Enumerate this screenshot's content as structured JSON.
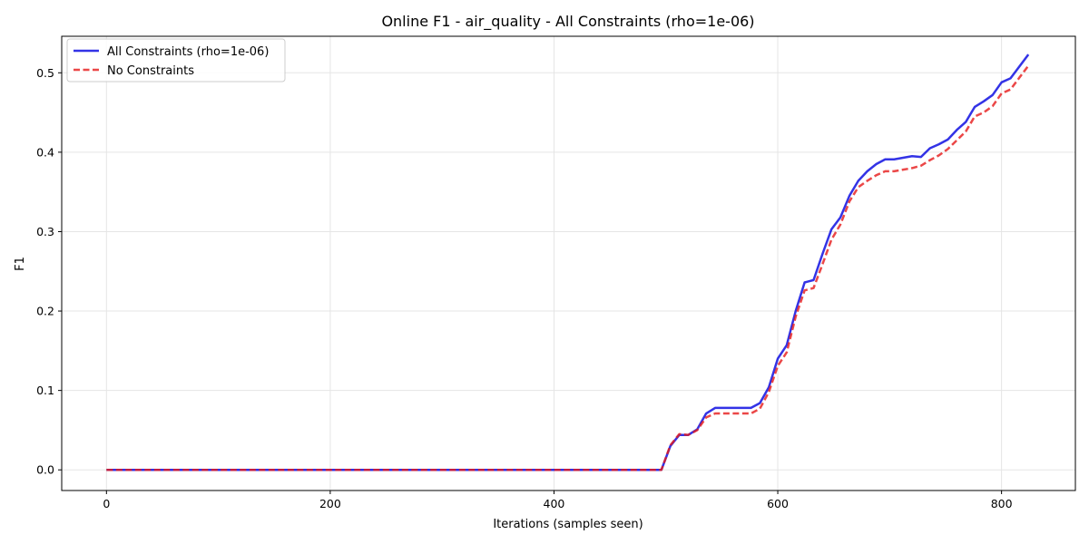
{
  "chart_data": {
    "type": "line",
    "title": "Online F1 - air_quality - All Constraints (rho=1e-06)",
    "xlabel": "Iterations (samples seen)",
    "ylabel": "F1",
    "xlim": [
      -40,
      866
    ],
    "ylim": [
      -0.026,
      0.546
    ],
    "xticks": [
      0,
      200,
      400,
      600,
      800
    ],
    "xtick_labels": [
      "0",
      "200",
      "400",
      "600",
      "800"
    ],
    "yticks": [
      0.0,
      0.1,
      0.2,
      0.3,
      0.4,
      0.5
    ],
    "ytick_labels": [
      "0.0",
      "0.1",
      "0.2",
      "0.3",
      "0.4",
      "0.5"
    ],
    "grid": true,
    "legend_position": "upper-left",
    "series": [
      {
        "name": "All Constraints (rho=1e-06)",
        "color": "#0000e0",
        "style": "solid",
        "x": [
          0,
          50,
          100,
          150,
          200,
          250,
          300,
          350,
          400,
          450,
          496,
          504,
          512,
          520,
          528,
          536,
          544,
          552,
          560,
          568,
          576,
          584,
          592,
          600,
          608,
          616,
          624,
          632,
          640,
          648,
          656,
          664,
          672,
          680,
          688,
          696,
          704,
          712,
          720,
          728,
          736,
          744,
          752,
          760,
          768,
          776,
          784,
          792,
          800,
          808,
          816,
          824
        ],
        "y": [
          0.0,
          0.0,
          0.0,
          0.0,
          0.0,
          0.0,
          0.0,
          0.0,
          0.0,
          0.0,
          0.0,
          0.03,
          0.044,
          0.044,
          0.051,
          0.071,
          0.078,
          0.078,
          0.078,
          0.078,
          0.078,
          0.084,
          0.104,
          0.14,
          0.157,
          0.2,
          0.236,
          0.239,
          0.272,
          0.303,
          0.318,
          0.345,
          0.364,
          0.376,
          0.385,
          0.391,
          0.391,
          0.393,
          0.395,
          0.394,
          0.405,
          0.41,
          0.416,
          0.428,
          0.438,
          0.457,
          0.464,
          0.472,
          0.488,
          0.493,
          0.508,
          0.523
        ]
      },
      {
        "name": "No Constraints",
        "color": "#e61919",
        "style": "dashed",
        "x": [
          0,
          50,
          100,
          150,
          200,
          250,
          300,
          350,
          400,
          450,
          496,
          504,
          512,
          520,
          528,
          536,
          544,
          552,
          560,
          568,
          576,
          584,
          592,
          600,
          608,
          616,
          624,
          632,
          640,
          648,
          656,
          664,
          672,
          680,
          688,
          696,
          704,
          712,
          720,
          728,
          736,
          744,
          752,
          760,
          768,
          776,
          784,
          792,
          800,
          808,
          816,
          824
        ],
        "y": [
          0.0,
          0.0,
          0.0,
          0.0,
          0.0,
          0.0,
          0.0,
          0.0,
          0.0,
          0.0,
          0.0,
          0.031,
          0.045,
          0.044,
          0.05,
          0.066,
          0.071,
          0.071,
          0.071,
          0.071,
          0.071,
          0.077,
          0.098,
          0.131,
          0.148,
          0.193,
          0.226,
          0.229,
          0.259,
          0.29,
          0.309,
          0.338,
          0.356,
          0.364,
          0.371,
          0.376,
          0.376,
          0.378,
          0.38,
          0.383,
          0.39,
          0.396,
          0.404,
          0.415,
          0.426,
          0.445,
          0.45,
          0.458,
          0.474,
          0.479,
          0.494,
          0.509
        ]
      }
    ]
  }
}
